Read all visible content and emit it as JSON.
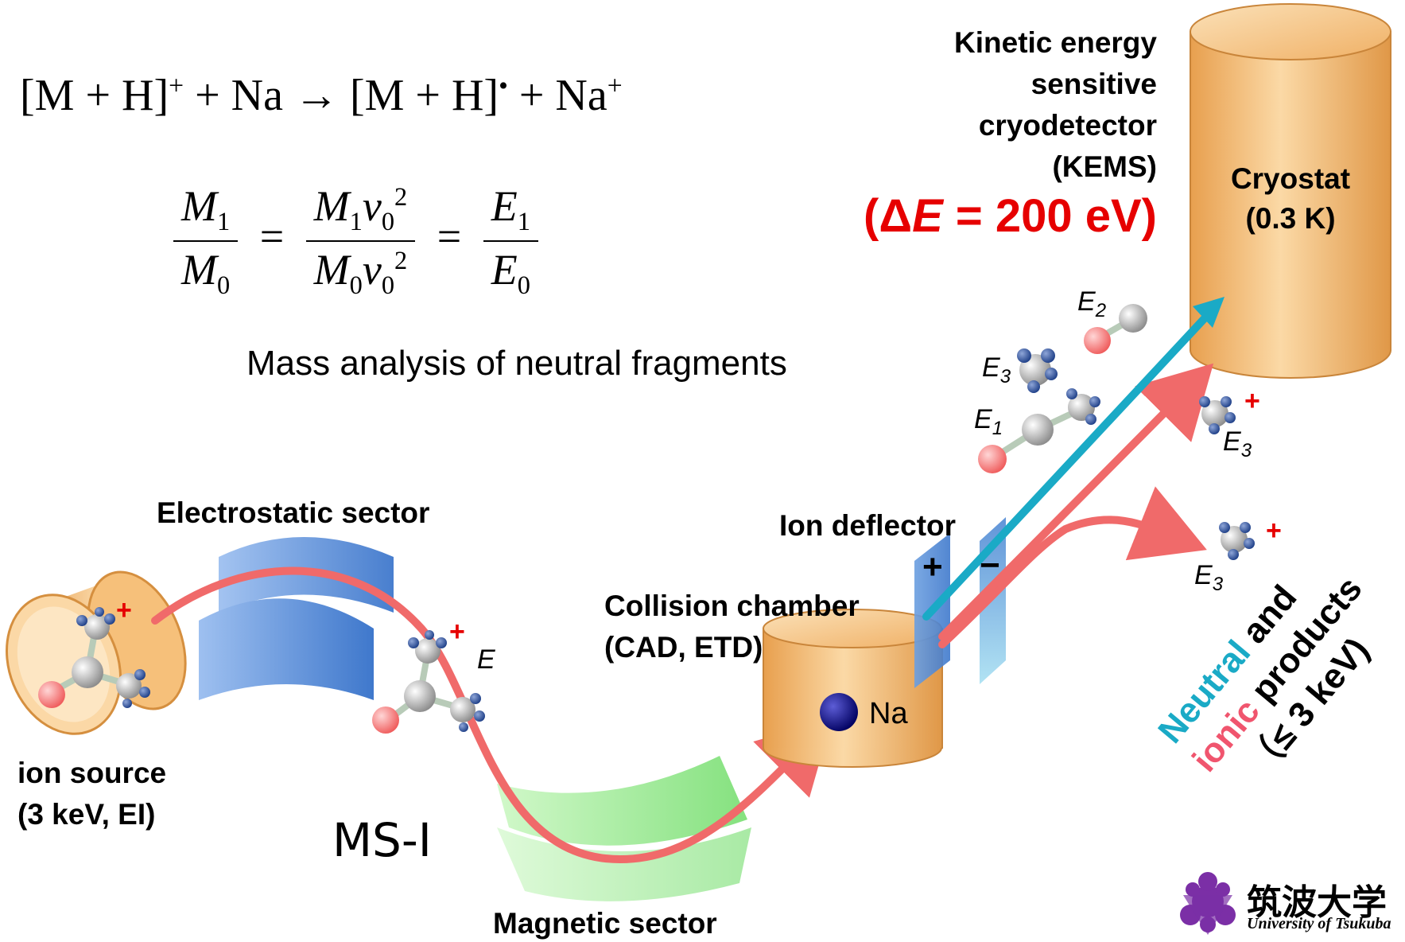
{
  "equations": {
    "reaction": {
      "lhs_open": "[M + H]",
      "lhs_sup": "+",
      "plus_na": " + Na ",
      "arrow": "→",
      "rhs_open": " [M + H]",
      "rhs_sup": "•",
      "plus_na_ion": " + Na",
      "na_sup": "+"
    },
    "ratio": {
      "f1_num": "M",
      "f1_num_sub": "1",
      "f1_den": "M",
      "f1_den_sub": "0",
      "eq": "=",
      "f2_num": "M",
      "f2_num_sub": "1",
      "f2_num_v": "v",
      "f2_num_vsub": "0",
      "f2_num_sup": "2",
      "f2_den": "M",
      "f2_den_sub": "0",
      "f2_den_v": "v",
      "f2_den_vsub": "0",
      "f2_den_sup": "2",
      "f3_num": "E",
      "f3_num_sub": "1",
      "f3_den": "E",
      "f3_den_sub": "0"
    }
  },
  "caption": "Mass analysis of neutral fragments",
  "detector": {
    "line1": "Kinetic energy",
    "line2": "sensitive",
    "line3": "cryodetector",
    "line4": "(KEMS)",
    "resolution_open": "(Δ",
    "resolution_symbol": "E",
    "resolution_rest": " = 200 eV)"
  },
  "cryostat": {
    "line1": "Cryostat",
    "line2": "(0.3 K)"
  },
  "labels": {
    "electrostatic_sector": "Electrostatic sector",
    "ion_deflector": "Ion deflector",
    "deflector_plus": "+",
    "deflector_minus": "−",
    "collision_chamber_line1": "Collision chamber",
    "collision_chamber_line2": "(CAD, ETD)",
    "na": "Na",
    "ion_source_line1": "ion source",
    "ion_source_line2": "(3 keV, EI)",
    "ms_i": "MS-I",
    "magnetic_sector": "Magnetic sector"
  },
  "energy_labels": {
    "e": "E",
    "e2": "E",
    "e2_sub": "2",
    "e3_upper": "E",
    "e3_upper_sub": "3",
    "e1": "E",
    "e1_sub": "1",
    "e3_ion_upper": "E",
    "e3_ion_upper_sub": "3",
    "e3_ion_lower": "E",
    "e3_ion_lower_sub": "3",
    "charge_plus": "+"
  },
  "products": {
    "neutral": "Neutral",
    "and": " and",
    "ionic": "ionic",
    "products": " products",
    "energy": "（≤ 3 keV)"
  },
  "logo": {
    "name_jp": "筑波大学",
    "name_en": "University of Tsukuba"
  },
  "colors": {
    "beam_red": "#f06a6a",
    "neutral_cyan": "#1aaac6",
    "ionic_pink": "#f0556e",
    "accent_red": "#e60000",
    "orange_body": "#f3b66a",
    "sector_blue": "#4f86d6",
    "sector_green": "#8de88a",
    "logo_purple": "#7b2fa6"
  }
}
